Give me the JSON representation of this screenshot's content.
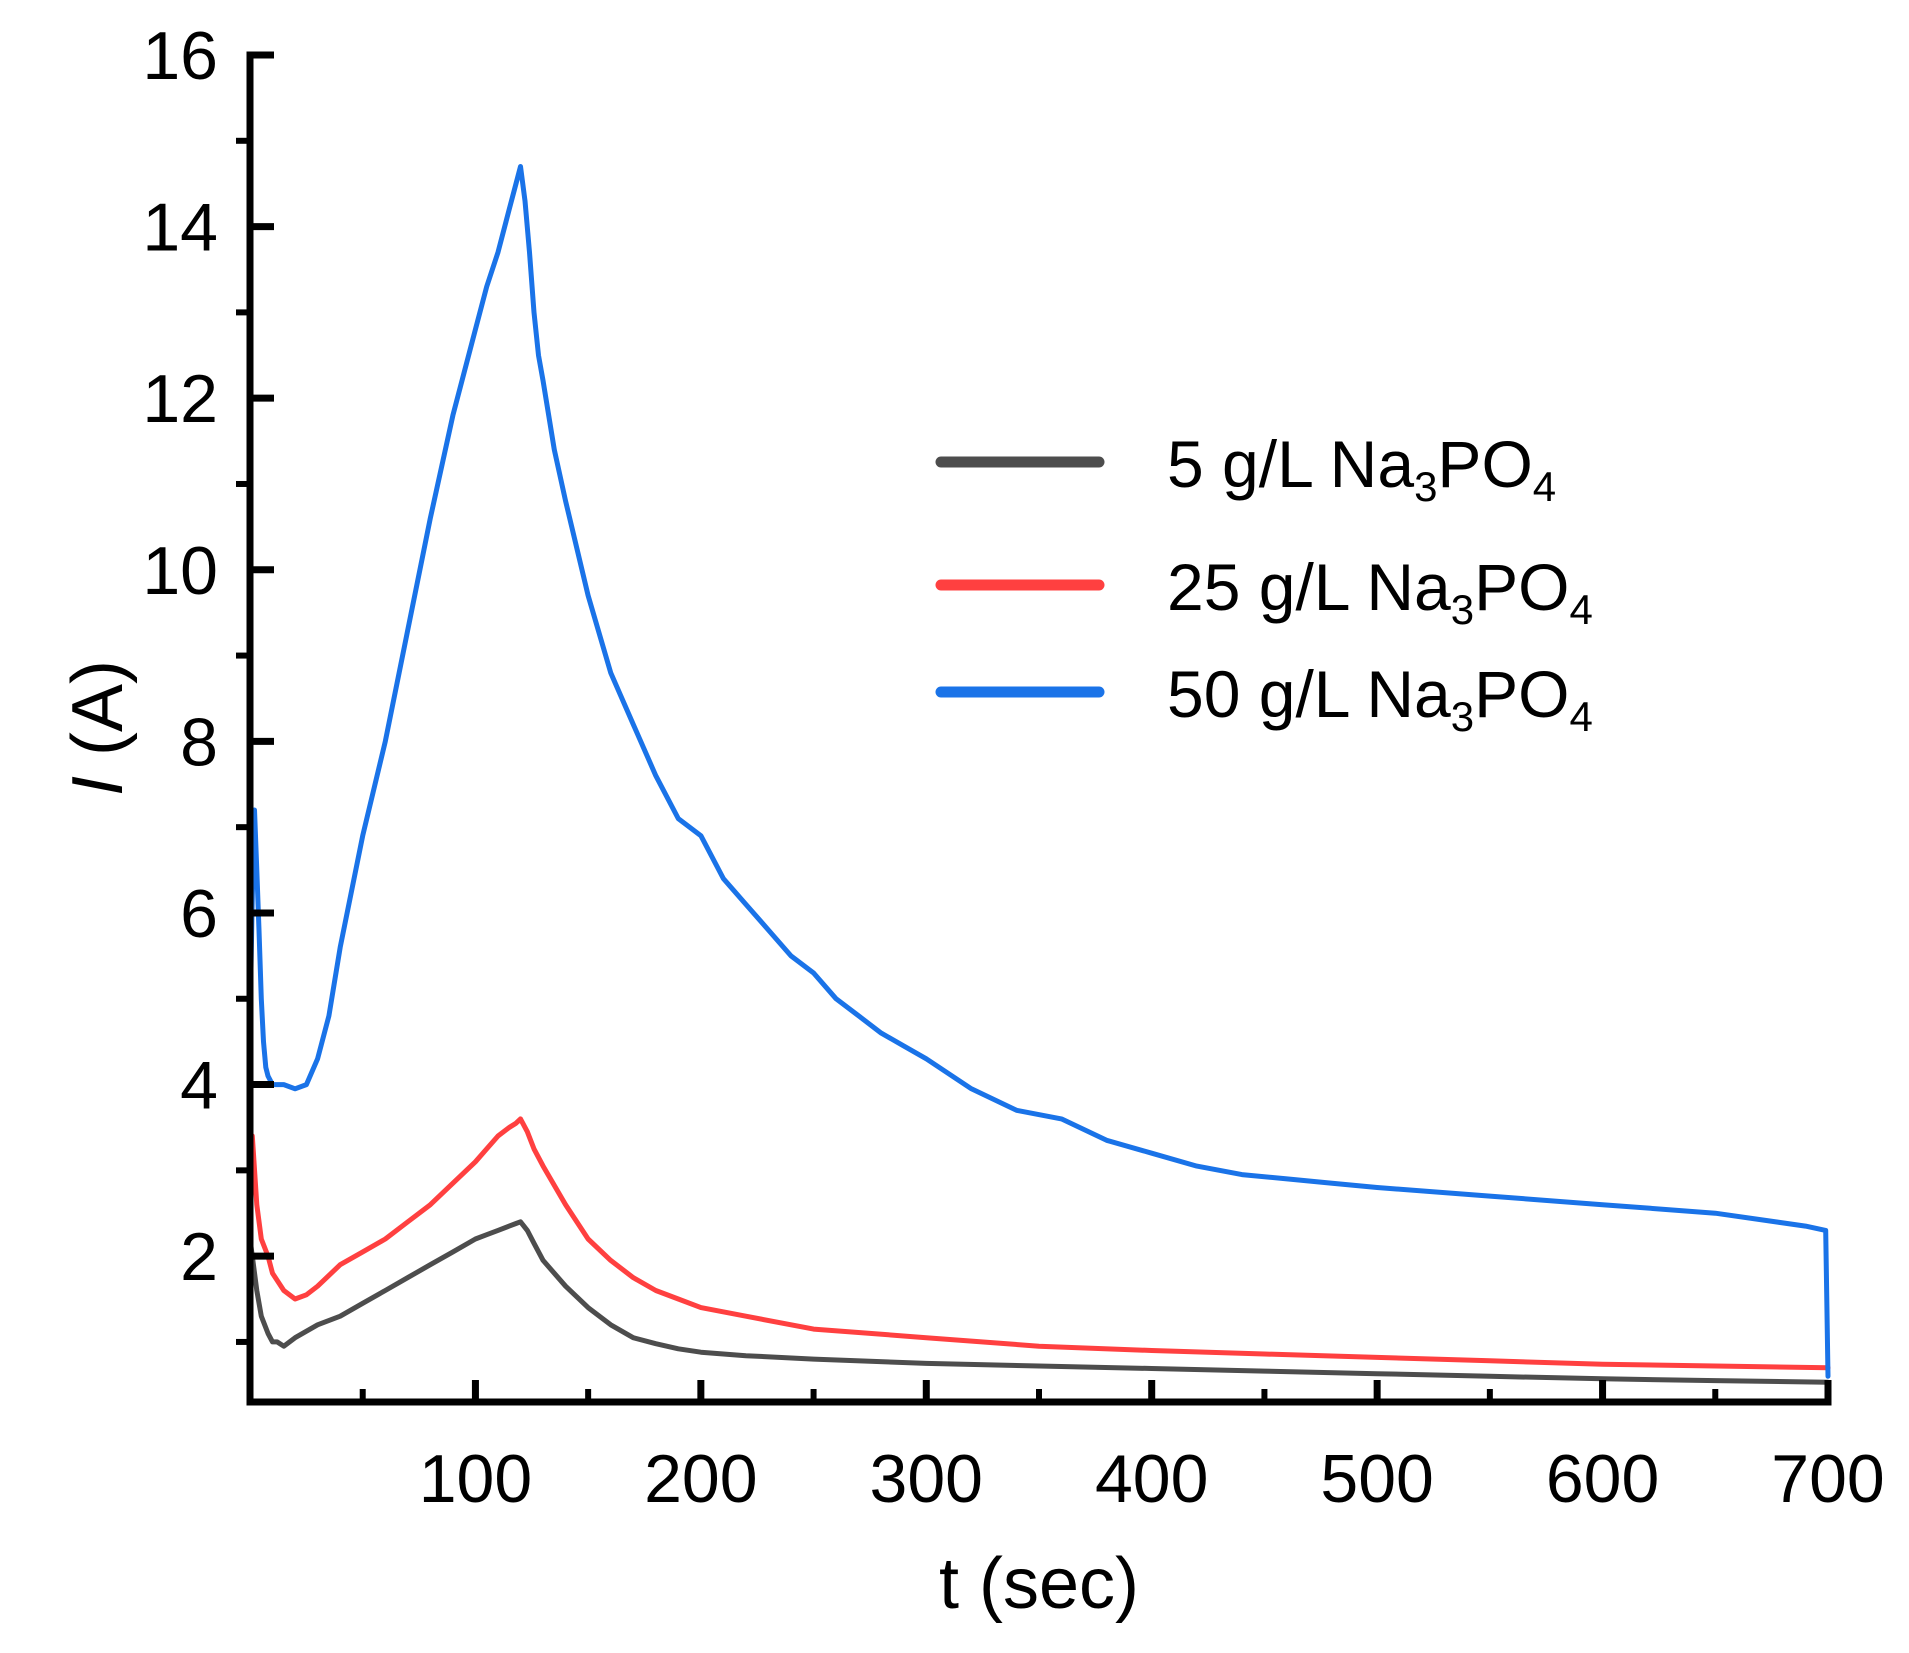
{
  "chart_data": {
    "type": "line",
    "title": "",
    "xlabel": "t (sec)",
    "ylabel_symbol": "I",
    "ylabel_unit": " (A)",
    "xlim": [
      0,
      700
    ],
    "ylim": [
      0.3,
      16
    ],
    "x_ticks": [
      100,
      200,
      300,
      400,
      500,
      600,
      700
    ],
    "x_minor_ticks": [
      50,
      150,
      250,
      350,
      450,
      550,
      650
    ],
    "y_ticks": [
      2,
      4,
      6,
      8,
      10,
      12,
      14,
      16
    ],
    "y_minor_ticks": [
      1,
      3,
      5,
      7,
      9,
      11,
      13,
      15
    ],
    "grid": false,
    "legend_position": "top-right",
    "series": [
      {
        "name": "5 g/L Na₃PO₄",
        "legend_prefix": "5 g/L Na",
        "legend_sub1": "3",
        "legend_mid": "PO",
        "legend_sub2": "4",
        "color": "#4d4d4d",
        "x": [
          0,
          1,
          3,
          5,
          8,
          10,
          12,
          15,
          20,
          30,
          40,
          50,
          60,
          70,
          80,
          90,
          100,
          105,
          110,
          115,
          118,
          120,
          123,
          126,
          130,
          140,
          150,
          160,
          170,
          180,
          190,
          200,
          220,
          250,
          300,
          350,
          400,
          450,
          500,
          550,
          600,
          650,
          700
        ],
        "y": [
          2.2,
          2.0,
          1.6,
          1.3,
          1.1,
          1.0,
          1.0,
          0.95,
          1.05,
          1.2,
          1.3,
          1.45,
          1.6,
          1.75,
          1.9,
          2.05,
          2.2,
          2.25,
          2.3,
          2.35,
          2.38,
          2.4,
          2.3,
          2.15,
          1.95,
          1.65,
          1.4,
          1.2,
          1.05,
          0.98,
          0.92,
          0.88,
          0.84,
          0.8,
          0.75,
          0.72,
          0.69,
          0.66,
          0.63,
          0.6,
          0.57,
          0.55,
          0.53
        ]
      },
      {
        "name": "25 g/L Na₃PO₄",
        "legend_prefix": "25 g/L Na",
        "legend_sub1": "3",
        "legend_mid": "PO",
        "legend_sub2": "4",
        "color": "#ff4040",
        "x": [
          0,
          1,
          3,
          5,
          8,
          10,
          15,
          20,
          25,
          30,
          40,
          50,
          60,
          70,
          80,
          90,
          100,
          105,
          110,
          115,
          118,
          120,
          123,
          126,
          130,
          140,
          150,
          160,
          170,
          180,
          190,
          200,
          220,
          250,
          300,
          350,
          400,
          450,
          500,
          550,
          600,
          650,
          700
        ],
        "y": [
          2.1,
          3.4,
          2.6,
          2.2,
          2.0,
          1.8,
          1.6,
          1.5,
          1.55,
          1.65,
          1.9,
          2.05,
          2.2,
          2.4,
          2.6,
          2.85,
          3.1,
          3.25,
          3.4,
          3.5,
          3.55,
          3.6,
          3.45,
          3.25,
          3.05,
          2.6,
          2.2,
          1.95,
          1.75,
          1.6,
          1.5,
          1.4,
          1.3,
          1.15,
          1.05,
          0.95,
          0.9,
          0.86,
          0.82,
          0.78,
          0.74,
          0.72,
          0.7
        ]
      },
      {
        "name": "50 g/L Na₃PO₄",
        "legend_prefix": "50 g/L Na",
        "legend_sub1": "3",
        "legend_mid": "PO",
        "legend_sub2": "4",
        "color": "#1a73e8",
        "x": [
          0,
          1,
          2,
          3,
          4,
          5,
          6,
          7,
          8,
          10,
          12,
          15,
          20,
          25,
          30,
          35,
          40,
          50,
          60,
          70,
          80,
          90,
          100,
          105,
          110,
          115,
          118,
          120,
          122,
          124,
          126,
          128,
          130,
          135,
          140,
          150,
          160,
          170,
          180,
          190,
          200,
          210,
          220,
          230,
          240,
          250,
          260,
          270,
          280,
          290,
          300,
          320,
          340,
          360,
          380,
          400,
          420,
          440,
          460,
          480,
          500,
          550,
          600,
          650,
          690,
          699,
          700
        ],
        "y": [
          4.7,
          6.2,
          7.2,
          6.5,
          5.8,
          5.0,
          4.5,
          4.2,
          4.1,
          4.0,
          4.0,
          4.0,
          3.95,
          4.0,
          4.3,
          4.8,
          5.6,
          6.9,
          8.0,
          9.3,
          10.6,
          11.8,
          12.8,
          13.3,
          13.7,
          14.2,
          14.5,
          14.7,
          14.3,
          13.7,
          13.0,
          12.5,
          12.2,
          11.4,
          10.8,
          9.7,
          8.8,
          8.2,
          7.6,
          7.1,
          6.9,
          6.4,
          6.1,
          5.8,
          5.5,
          5.3,
          5.0,
          4.8,
          4.6,
          4.45,
          4.3,
          3.95,
          3.7,
          3.6,
          3.35,
          3.2,
          3.05,
          2.95,
          2.9,
          2.85,
          2.8,
          2.7,
          2.6,
          2.5,
          2.35,
          2.3,
          0.6
        ]
      }
    ]
  }
}
